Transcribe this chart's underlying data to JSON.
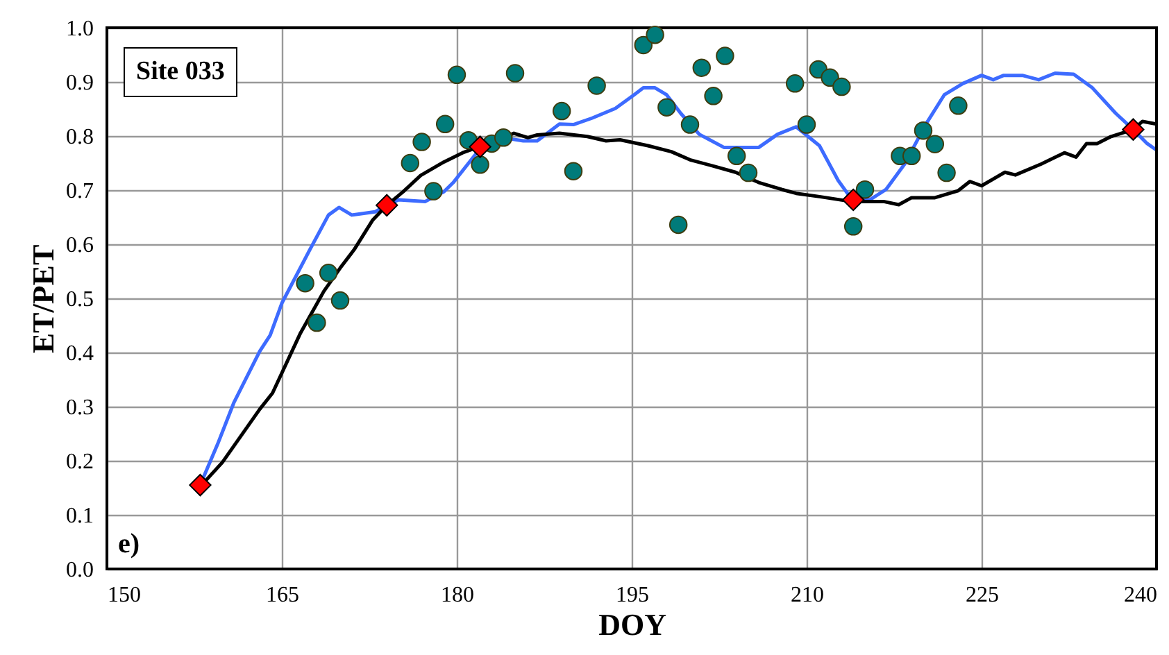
{
  "chart_data": {
    "type": "line",
    "title": "Site 033",
    "annotations": [
      "e)"
    ],
    "xlabel": "DOY",
    "ylabel": "ET/PET",
    "xlim": [
      150,
      240
    ],
    "xticks": [
      150,
      165,
      180,
      195,
      210,
      225,
      240
    ],
    "ylim": [
      0,
      1
    ],
    "yticks": [
      {
        "value": 0,
        "label": "0.0"
      },
      {
        "value": 0.1,
        "label": "0.1"
      },
      {
        "value": 0.2,
        "label": "0.2"
      },
      {
        "value": 0.3,
        "label": "0.3"
      },
      {
        "value": 0.4,
        "label": "0.4"
      },
      {
        "value": 0.5,
        "label": "0.5"
      },
      {
        "value": 0.6,
        "label": "0.6"
      },
      {
        "value": 0.7,
        "label": "0.7"
      },
      {
        "value": 0.8,
        "label": "0.8"
      },
      {
        "value": 0.9,
        "label": "0.9"
      },
      {
        "value": 1,
        "label": "1.0"
      }
    ],
    "grid": true,
    "series": [
      {
        "color": "#3d6bff",
        "marker": "none",
        "x": [
          158,
          159.5,
          160.9,
          163.1,
          164,
          165,
          167.4,
          169,
          169.9,
          171,
          173,
          174,
          175,
          177.3,
          178.9,
          179.7,
          181.9,
          184.5,
          185.7,
          186.9,
          188.8,
          190,
          191.6,
          193.6,
          195.2,
          196,
          197,
          198,
          199.2,
          200.8,
          202.9,
          205.9,
          207.5,
          209.1,
          211.1,
          212.7,
          213.7,
          215.4,
          216.8,
          218.4,
          220.2,
          221.8,
          223.4,
          225,
          226,
          226.9,
          228.5,
          229.9,
          231.3,
          232.9,
          234.5,
          236.5,
          238,
          239.2,
          240
        ],
        "values": [
          0.155,
          0.231,
          0.308,
          0.402,
          0.432,
          0.491,
          0.59,
          0.654,
          0.668,
          0.654,
          0.66,
          0.672,
          0.682,
          0.679,
          0.697,
          0.714,
          0.774,
          0.795,
          0.791,
          0.791,
          0.822,
          0.821,
          0.833,
          0.851,
          0.876,
          0.889,
          0.889,
          0.876,
          0.842,
          0.803,
          0.779,
          0.779,
          0.803,
          0.817,
          0.782,
          0.718,
          0.688,
          0.682,
          0.701,
          0.748,
          0.821,
          0.876,
          0.897,
          0.912,
          0.904,
          0.912,
          0.912,
          0.904,
          0.916,
          0.914,
          0.889,
          0.842,
          0.812,
          0.786,
          0.774
        ]
      },
      {
        "color": "#000000",
        "marker": "none",
        "x": [
          158,
          159.9,
          163.1,
          164.2,
          166.6,
          168.6,
          170,
          171.2,
          172.8,
          174,
          175.4,
          176.9,
          178.9,
          180.5,
          181.9,
          184.9,
          186.1,
          186.9,
          188.8,
          191.2,
          192.8,
          194,
          196.4,
          198.4,
          200,
          201.9,
          203.9,
          205.9,
          207.9,
          209.1,
          211.1,
          213.8,
          216.6,
          217.9,
          219,
          221,
          223,
          224,
          225,
          227,
          227.9,
          230.1,
          232.1,
          233.1,
          234,
          234.9,
          236.1,
          238,
          238.8,
          240
        ],
        "values": [
          0.152,
          0.197,
          0.295,
          0.325,
          0.436,
          0.513,
          0.556,
          0.59,
          0.645,
          0.672,
          0.697,
          0.727,
          0.752,
          0.769,
          0.78,
          0.805,
          0.797,
          0.802,
          0.805,
          0.799,
          0.791,
          0.793,
          0.782,
          0.771,
          0.756,
          0.745,
          0.733,
          0.714,
          0.701,
          0.694,
          0.688,
          0.679,
          0.679,
          0.673,
          0.686,
          0.686,
          0.699,
          0.716,
          0.708,
          0.733,
          0.728,
          0.748,
          0.769,
          0.761,
          0.786,
          0.786,
          0.799,
          0.812,
          0.827,
          0.822
        ]
      },
      {
        "type": "scatter",
        "color": "#007b7a",
        "marker": "circle",
        "x": [
          167,
          169,
          168,
          170,
          176,
          177,
          178,
          179,
          180,
          181,
          182,
          183,
          184,
          185,
          189,
          190,
          192,
          196,
          197,
          198,
          199,
          200,
          201,
          202,
          203,
          204,
          205,
          209,
          210,
          211,
          212,
          213,
          214,
          215,
          218,
          219,
          220,
          221,
          222,
          223
        ],
        "values": [
          0.528,
          0.547,
          0.455,
          0.496,
          0.75,
          0.789,
          0.698,
          0.822,
          0.913,
          0.792,
          0.747,
          0.786,
          0.797,
          0.916,
          0.846,
          0.735,
          0.893,
          0.968,
          0.987,
          0.853,
          0.636,
          0.821,
          0.926,
          0.874,
          0.948,
          0.763,
          0.732,
          0.897,
          0.821,
          0.923,
          0.908,
          0.891,
          0.633,
          0.701,
          0.763,
          0.763,
          0.81,
          0.785,
          0.732,
          0.856
        ]
      },
      {
        "type": "scatter",
        "color": "#ff0000",
        "marker": "diamond",
        "x": [
          158,
          174,
          182,
          214,
          238
        ],
        "values": [
          0.155,
          0.672,
          0.78,
          0.682,
          0.812
        ]
      }
    ]
  }
}
